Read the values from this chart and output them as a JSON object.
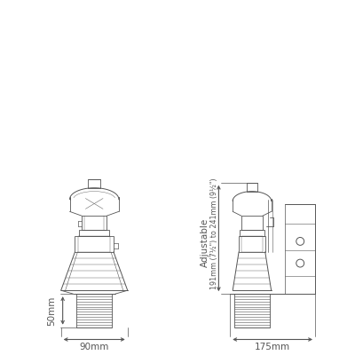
{
  "bg_color": "#ffffff",
  "line_color": "#555555",
  "dim_color": "#555555",
  "lw_main": 0.7,
  "lw_thin": 0.4,
  "lw_dim": 0.5,
  "fig_width": 4.0,
  "fig_height": 4.0,
  "dim_50mm_label": "50mm",
  "dim_90mm_label": "90mm",
  "dim_175mm_label": "175mm",
  "dim_adj_label": "Adjustable",
  "dim_range_label": "191mm (7½\") to 241mm (9½\")",
  "font_size_dim": 7.5,
  "font_size_adj": 7.5
}
